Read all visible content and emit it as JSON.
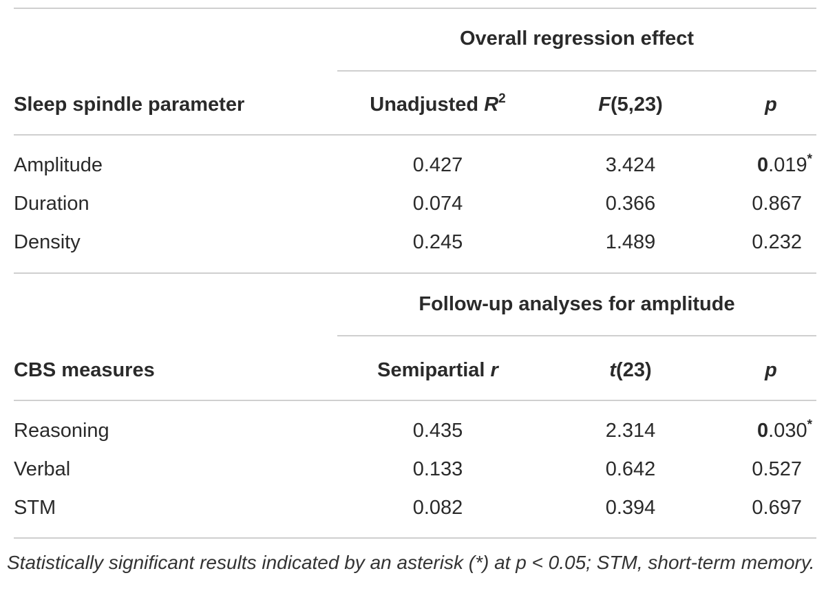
{
  "table": {
    "section1": {
      "group_header": "Overall regression effect",
      "col_param": "Sleep spindle parameter",
      "col_r2_prefix": "Unadjusted ",
      "col_r2_var": "R",
      "col_r2_sup": "2",
      "col_f_var": "F",
      "col_f_args": "(5,23)",
      "col_p": "p",
      "rows": [
        {
          "label": "Amplitude",
          "r2": "0.427",
          "f": "3.424",
          "p_lead": "0",
          "p_rest": ".019",
          "p_star": "*"
        },
        {
          "label": "Duration",
          "r2": "0.074",
          "f": "0.366",
          "p": "0.867"
        },
        {
          "label": "Density",
          "r2": "0.245",
          "f": "1.489",
          "p": "0.232"
        }
      ]
    },
    "section2": {
      "group_header": "Follow-up analyses for amplitude",
      "col_measure": "CBS measures",
      "col_r_prefix": "Semipartial ",
      "col_r_var": "r",
      "col_t_var": "t",
      "col_t_args": "(23)",
      "col_p": "p",
      "rows": [
        {
          "label": "Reasoning",
          "r": "0.435",
          "t": "2.314",
          "p_lead": "0",
          "p_rest": ".030",
          "p_star": "*"
        },
        {
          "label": "Verbal",
          "r": "0.133",
          "t": "0.642",
          "p": "0.527"
        },
        {
          "label": "STM",
          "r": "0.082",
          "t": "0.394",
          "p": "0.697"
        }
      ]
    }
  },
  "caption": "Statistically significant results indicated by an asterisk (*) at p < 0.05; STM, short-term memory."
}
